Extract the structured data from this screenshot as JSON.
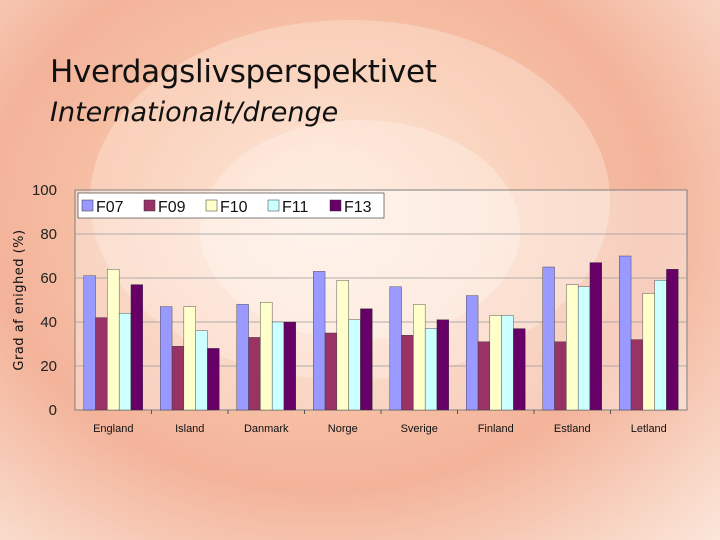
{
  "slide": {
    "title": "Hverdagslivsperspektivet",
    "subtitle": "Internationalt/drenge"
  },
  "chart_data": {
    "type": "bar",
    "title": "",
    "xlabel": "",
    "ylabel": "Grad af enighed (%)",
    "ylim": [
      0,
      100
    ],
    "yticks": [
      0,
      20,
      40,
      60,
      80,
      100
    ],
    "grid": true,
    "legend_position": "top-left",
    "categories": [
      "England",
      "Island",
      "Danmark",
      "Norge",
      "Sverige",
      "Finland",
      "Estland",
      "Letland"
    ],
    "series": [
      {
        "name": "F07",
        "color": "#9999ff",
        "values": [
          61,
          47,
          48,
          63,
          56,
          52,
          65,
          70
        ]
      },
      {
        "name": "F09",
        "color": "#993366",
        "values": [
          42,
          29,
          33,
          35,
          34,
          31,
          31,
          32
        ]
      },
      {
        "name": "F10",
        "color": "#ffffcc",
        "values": [
          64,
          47,
          49,
          59,
          48,
          43,
          57,
          53
        ]
      },
      {
        "name": "F11",
        "color": "#ccffff",
        "values": [
          44,
          36,
          40,
          41,
          37,
          43,
          56,
          59
        ]
      },
      {
        "name": "F13",
        "color": "#660066",
        "values": [
          57,
          28,
          40,
          46,
          41,
          37,
          67,
          64
        ]
      }
    ]
  }
}
